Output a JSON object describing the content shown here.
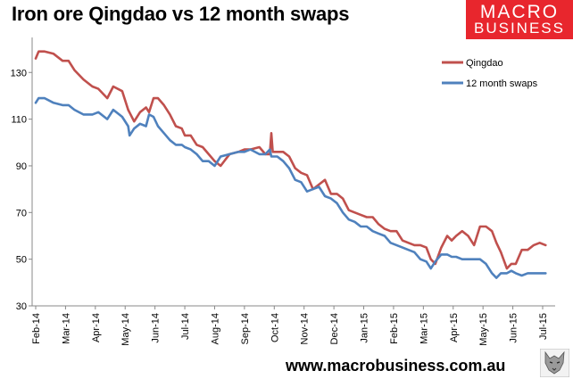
{
  "title": "Iron ore Qingdao vs 12 month swaps",
  "logo": {
    "line1": "MACRO",
    "line2": "BUSINESS",
    "color": "#e8262d"
  },
  "footer": "www.macrobusiness.com.au",
  "chart_data": {
    "type": "line",
    "title": "Iron ore Qingdao vs 12 month swaps",
    "xlabel": "",
    "ylabel": "",
    "ylim": [
      30,
      145
    ],
    "yticks": [
      30,
      50,
      70,
      90,
      110,
      130
    ],
    "xticks": [
      "Feb-14",
      "Mar-14",
      "Apr-14",
      "May-14",
      "Jun-14",
      "Jul-14",
      "Aug-14",
      "Sep-14",
      "Oct-14",
      "Nov-14",
      "Dec-14",
      "Jan-15",
      "Feb-15",
      "Mar-15",
      "Apr-15",
      "May-15",
      "Jun-15",
      "Jul-15"
    ],
    "grid": false,
    "legend_position": "top-right",
    "x_is_month_index": true,
    "series": [
      {
        "name": "Qingdao",
        "color": "#c0504d",
        "x": [
          0,
          0.1,
          0.3,
          0.6,
          0.9,
          1.1,
          1.3,
          1.6,
          1.9,
          2.1,
          2.4,
          2.6,
          2.9,
          3.1,
          3.3,
          3.5,
          3.7,
          3.8,
          3.95,
          4.1,
          4.3,
          4.5,
          4.7,
          4.9,
          5.0,
          5.2,
          5.4,
          5.6,
          5.8,
          6.0,
          6.2,
          6.5,
          6.8,
          7.0,
          7.2,
          7.5,
          7.7,
          7.85,
          7.9,
          7.95,
          8.1,
          8.3,
          8.5,
          8.7,
          8.9,
          9.1,
          9.3,
          9.5,
          9.7,
          9.9,
          10.1,
          10.3,
          10.5,
          10.7,
          10.9,
          11.1,
          11.3,
          11.5,
          11.7,
          11.9,
          12.1,
          12.3,
          12.5,
          12.7,
          12.9,
          13.1,
          13.25,
          13.4,
          13.6,
          13.8,
          13.95,
          14.1,
          14.3,
          14.5,
          14.7,
          14.9,
          15.1,
          15.3,
          15.45,
          15.6,
          15.8,
          15.95,
          16.1,
          16.3,
          16.5,
          16.7,
          16.9,
          17.1
        ],
        "y": [
          136,
          139,
          139,
          138,
          135,
          135,
          131,
          127,
          124,
          123,
          119,
          124,
          122,
          114,
          109,
          113,
          115,
          113,
          119,
          119,
          116,
          112,
          107,
          106,
          103,
          103,
          99,
          98,
          95,
          92,
          90,
          95,
          96,
          97,
          97,
          98,
          95,
          95,
          104,
          96,
          96,
          96,
          94,
          89,
          87,
          86,
          80,
          82,
          84,
          78,
          78,
          76,
          71,
          70,
          69,
          68,
          68,
          65,
          63,
          62,
          62,
          58,
          57,
          56,
          56,
          55,
          50,
          48,
          55,
          60,
          58,
          60,
          62,
          60,
          56,
          64,
          64,
          62,
          57,
          53,
          46,
          48,
          48,
          54,
          54,
          56,
          57,
          56
        ]
      },
      {
        "name": "12 month swaps",
        "color": "#4f81bd",
        "x": [
          0,
          0.1,
          0.3,
          0.6,
          0.9,
          1.1,
          1.3,
          1.6,
          1.9,
          2.1,
          2.4,
          2.6,
          2.9,
          3.1,
          3.15,
          3.3,
          3.5,
          3.7,
          3.8,
          3.95,
          4.1,
          4.3,
          4.5,
          4.7,
          4.9,
          5.0,
          5.2,
          5.4,
          5.6,
          5.8,
          6.0,
          6.2,
          6.5,
          6.8,
          7.0,
          7.2,
          7.5,
          7.7,
          7.85,
          7.9,
          7.95,
          8.1,
          8.3,
          8.5,
          8.7,
          8.9,
          9.1,
          9.3,
          9.5,
          9.7,
          9.9,
          10.1,
          10.3,
          10.5,
          10.7,
          10.9,
          11.1,
          11.3,
          11.5,
          11.7,
          11.9,
          12.1,
          12.3,
          12.5,
          12.7,
          12.9,
          13.1,
          13.25,
          13.4,
          13.6,
          13.8,
          13.95,
          14.1,
          14.3,
          14.5,
          14.7,
          14.9,
          15.1,
          15.3,
          15.45,
          15.6,
          15.8,
          15.95,
          16.1,
          16.3,
          16.5,
          16.7,
          16.9,
          17.1
        ],
        "y": [
          117,
          119,
          119,
          117,
          116,
          116,
          114,
          112,
          112,
          113,
          110,
          114,
          111,
          107,
          103,
          106,
          108,
          107,
          112,
          111,
          107,
          104,
          101,
          99,
          99,
          98,
          97,
          95,
          92,
          92,
          90,
          94,
          95,
          96,
          96,
          97,
          95,
          95,
          97,
          94,
          94,
          94,
          92,
          89,
          84,
          83,
          79,
          80,
          81,
          77,
          76,
          74,
          70,
          67,
          66,
          64,
          64,
          62,
          61,
          60,
          57,
          56,
          55,
          54,
          53,
          50,
          49,
          46,
          49,
          52,
          52,
          51,
          51,
          50,
          50,
          50,
          50,
          48,
          44,
          42,
          44,
          44,
          45,
          44,
          43,
          44,
          44,
          44,
          44
        ]
      }
    ]
  }
}
